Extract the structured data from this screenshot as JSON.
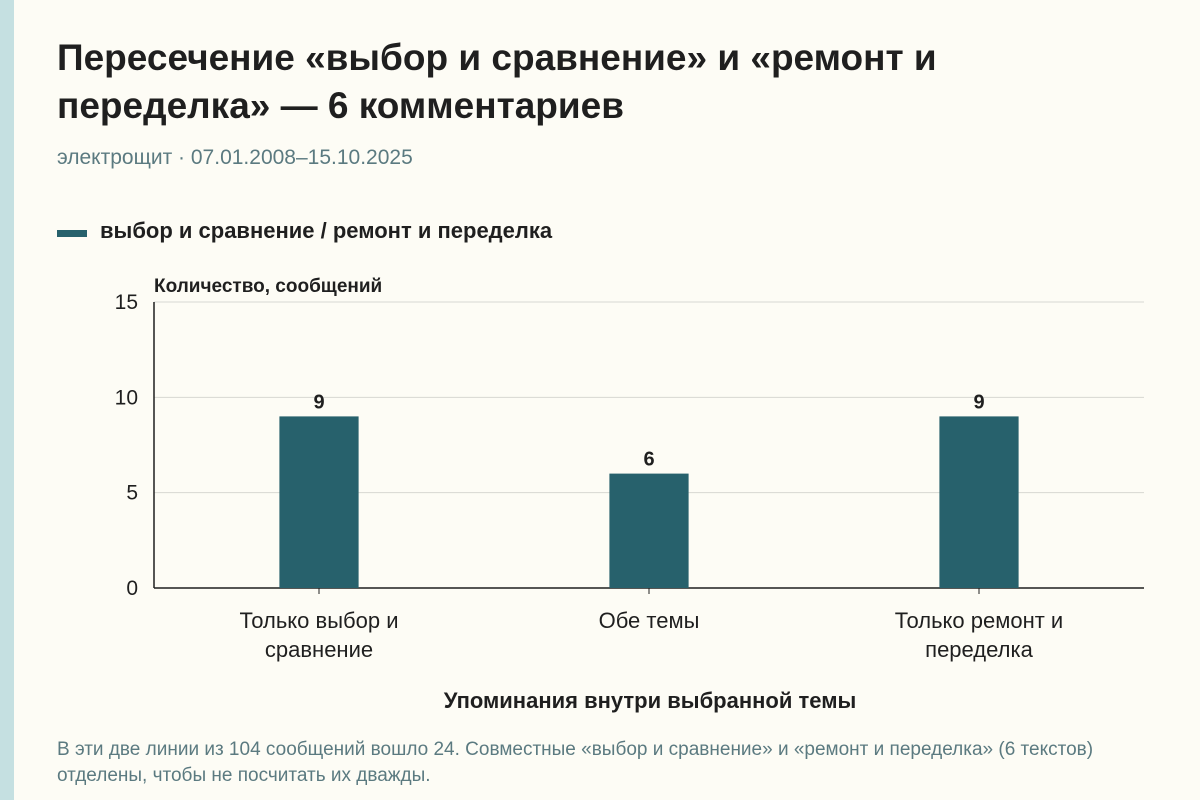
{
  "title": "Пересечение «выбор и сравнение» и «ремонт и переделка» — 6 комментариев",
  "subtitle": "электрощит · 07.01.2008–15.10.2025",
  "note": "В эти две линии из 104 сообщений вошло 24. Совместные «выбор и сравнение» и «ремонт и переделка» (6 текстов) отделены, чтобы не посчитать их дважды.",
  "colors": {
    "bar": "#27616c",
    "grid": "#d7d7d2",
    "axis": "#1f1f1f",
    "accent_stripe": "#c5e0e1"
  },
  "chart_data": {
    "type": "bar",
    "title": "Пересечение «выбор и сравнение» и «ремонт и переделка» — 6 комментариев",
    "subtitle": "электрощит · 07.01.2008–15.10.2025",
    "categories": [
      [
        "Только выбор и",
        "сравнение"
      ],
      [
        "Обе темы"
      ],
      [
        "Только ремонт и",
        "переделка"
      ]
    ],
    "series": [
      {
        "name": "выбор и сравнение / ремонт и переделка",
        "values": [
          9,
          6,
          9
        ]
      }
    ],
    "data_labels": [
      "9",
      "6",
      "9"
    ],
    "xlabel": "Упоминания внутри выбранной темы",
    "ylabel": "Количество, сообщений",
    "ylim": [
      0,
      15
    ],
    "yticks": [
      0,
      5,
      10,
      15
    ],
    "grid": true,
    "legend": "top-left"
  }
}
